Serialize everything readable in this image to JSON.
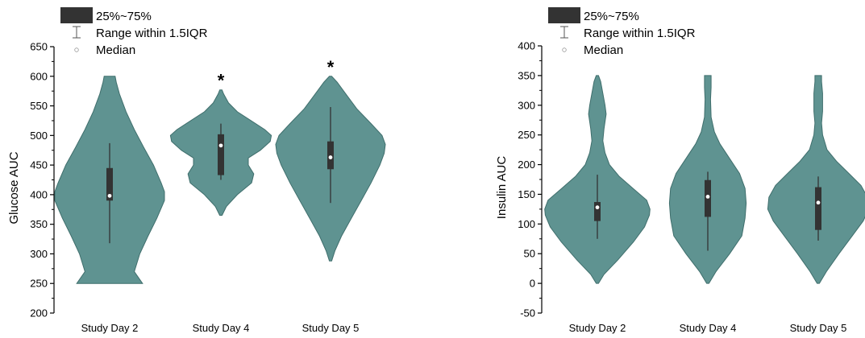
{
  "colors": {
    "violin_fill": "#5f9391",
    "violin_edge": "#3f6e6c",
    "box_fill": "#333333",
    "median": "#ffffff",
    "axis": "#000000"
  },
  "legend": {
    "box_label": "25%~75%",
    "whisker_label": "Range within 1.5IQR",
    "median_label": "Median"
  },
  "chart_data": [
    {
      "type": "violin",
      "ylabel": "Glucose AUC",
      "ylim": [
        200,
        650
      ],
      "yticks": [
        200,
        250,
        300,
        350,
        400,
        450,
        500,
        550,
        600,
        650
      ],
      "categories": [
        "Study Day 2",
        "Study Day 4",
        "Study Day 5"
      ],
      "series": [
        {
          "category": "Study Day 2",
          "min": 250,
          "max": 600,
          "q1": 390,
          "median": 398,
          "q3": 445,
          "whisker_low": 318,
          "whisker_high": 487,
          "annotation": "",
          "density": [
            [
              250,
              0.6
            ],
            [
              270,
              0.45
            ],
            [
              300,
              0.55
            ],
            [
              330,
              0.7
            ],
            [
              360,
              0.86
            ],
            [
              390,
              1.0
            ],
            [
              405,
              1.0
            ],
            [
              420,
              0.94
            ],
            [
              450,
              0.8
            ],
            [
              480,
              0.62
            ],
            [
              510,
              0.45
            ],
            [
              540,
              0.3
            ],
            [
              570,
              0.18
            ],
            [
              590,
              0.12
            ],
            [
              600,
              0.1
            ]
          ]
        },
        {
          "category": "Study Day 4",
          "min": 365,
          "max": 577,
          "q1": 433,
          "median": 483,
          "q3": 502,
          "whisker_low": 425,
          "whisker_high": 520,
          "annotation": "*",
          "density": [
            [
              365,
              0.02
            ],
            [
              380,
              0.1
            ],
            [
              400,
              0.3
            ],
            [
              420,
              0.56
            ],
            [
              435,
              0.6
            ],
            [
              450,
              0.5
            ],
            [
              462,
              0.5
            ],
            [
              475,
              0.72
            ],
            [
              490,
              0.9
            ],
            [
              500,
              0.92
            ],
            [
              510,
              0.8
            ],
            [
              525,
              0.55
            ],
            [
              540,
              0.3
            ],
            [
              555,
              0.14
            ],
            [
              570,
              0.05
            ],
            [
              577,
              0.02
            ]
          ]
        },
        {
          "category": "Study Day 5",
          "min": 288,
          "max": 600,
          "q1": 443,
          "median": 463,
          "q3": 490,
          "whisker_low": 386,
          "whisker_high": 548,
          "annotation": "*",
          "density": [
            [
              288,
              0.02
            ],
            [
              305,
              0.08
            ],
            [
              330,
              0.2
            ],
            [
              360,
              0.38
            ],
            [
              390,
              0.56
            ],
            [
              420,
              0.74
            ],
            [
              450,
              0.9
            ],
            [
              470,
              0.98
            ],
            [
              485,
              1.0
            ],
            [
              500,
              0.94
            ],
            [
              520,
              0.74
            ],
            [
              545,
              0.48
            ],
            [
              570,
              0.28
            ],
            [
              590,
              0.12
            ],
            [
              600,
              0.02
            ]
          ]
        }
      ]
    },
    {
      "type": "violin",
      "ylabel": "Insulin AUC",
      "ylim": [
        -50,
        400
      ],
      "yticks": [
        -50,
        0,
        50,
        100,
        150,
        200,
        250,
        300,
        350,
        400
      ],
      "categories": [
        "Study Day 2",
        "Study Day 4",
        "Study Day 5"
      ],
      "series": [
        {
          "category": "Study Day 2",
          "min": 0,
          "max": 350,
          "q1": 105,
          "median": 128,
          "q3": 137,
          "whisker_low": 75,
          "whisker_high": 183,
          "annotation": "",
          "density": [
            [
              0,
              0.02
            ],
            [
              15,
              0.12
            ],
            [
              40,
              0.38
            ],
            [
              70,
              0.66
            ],
            [
              95,
              0.86
            ],
            [
              115,
              0.95
            ],
            [
              125,
              0.96
            ],
            [
              140,
              0.9
            ],
            [
              160,
              0.65
            ],
            [
              180,
              0.4
            ],
            [
              200,
              0.22
            ],
            [
              220,
              0.14
            ],
            [
              240,
              0.1
            ],
            [
              260,
              0.12
            ],
            [
              285,
              0.16
            ],
            [
              300,
              0.14
            ],
            [
              320,
              0.1
            ],
            [
              340,
              0.06
            ],
            [
              350,
              0.02
            ]
          ]
        },
        {
          "category": "Study Day 4",
          "min": 0,
          "max": 350,
          "q1": 112,
          "median": 146,
          "q3": 174,
          "whisker_low": 55,
          "whisker_high": 188,
          "annotation": "",
          "density": [
            [
              0,
              0.02
            ],
            [
              20,
              0.15
            ],
            [
              50,
              0.4
            ],
            [
              80,
              0.62
            ],
            [
              110,
              0.68
            ],
            [
              135,
              0.7
            ],
            [
              160,
              0.68
            ],
            [
              185,
              0.58
            ],
            [
              210,
              0.4
            ],
            [
              235,
              0.22
            ],
            [
              255,
              0.12
            ],
            [
              280,
              0.06
            ],
            [
              310,
              0.05
            ],
            [
              330,
              0.06
            ],
            [
              350,
              0.06
            ]
          ]
        },
        {
          "category": "Study Day 5",
          "min": 0,
          "max": 350,
          "q1": 90,
          "median": 136,
          "q3": 162,
          "whisker_low": 72,
          "whisker_high": 180,
          "annotation": "",
          "density": [
            [
              0,
              0.02
            ],
            [
              20,
              0.15
            ],
            [
              50,
              0.38
            ],
            [
              80,
              0.62
            ],
            [
              105,
              0.82
            ],
            [
              125,
              0.92
            ],
            [
              145,
              0.9
            ],
            [
              165,
              0.78
            ],
            [
              185,
              0.56
            ],
            [
              205,
              0.34
            ],
            [
              225,
              0.16
            ],
            [
              250,
              0.08
            ],
            [
              270,
              0.06
            ],
            [
              290,
              0.08
            ],
            [
              320,
              0.08
            ],
            [
              340,
              0.06
            ],
            [
              350,
              0.06
            ]
          ]
        }
      ]
    }
  ]
}
